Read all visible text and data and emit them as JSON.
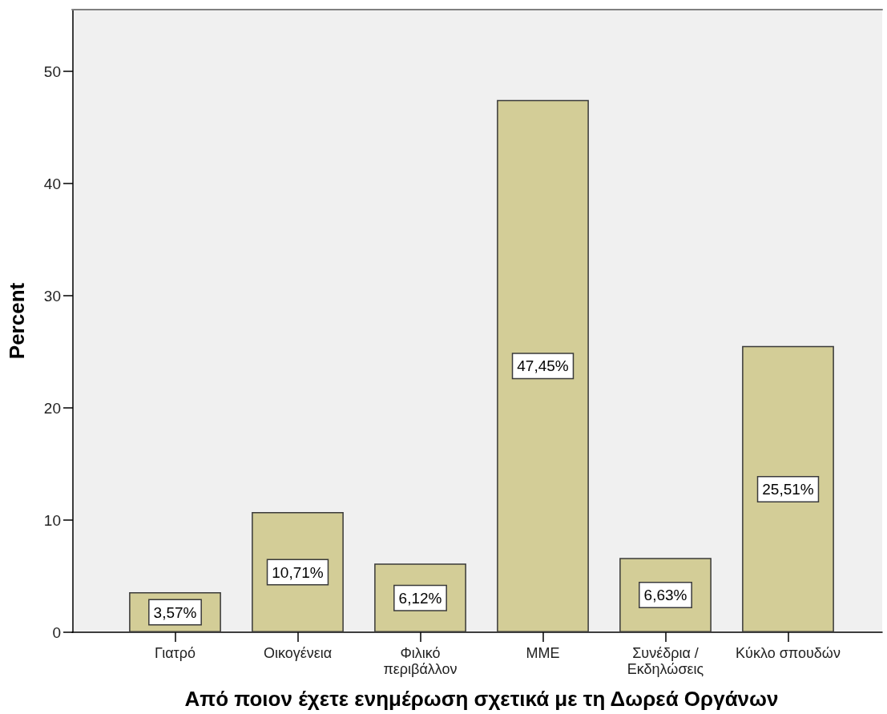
{
  "chart_data": {
    "type": "bar",
    "categories": [
      "Γιατρό",
      "Οικογένεια",
      "Φιλικό\nπεριβάλλον",
      "ΜΜΕ",
      "Συνέδρια /\nΕκδηλώσεις",
      "Κύκλο σπουδών"
    ],
    "values": [
      3.57,
      10.71,
      6.12,
      47.45,
      6.63,
      25.51
    ],
    "value_labels": [
      "3,57%",
      "10,71%",
      "6,12%",
      "47,45%",
      "6,63%",
      "25,51%"
    ],
    "color": "#d3cd97",
    "xlabel": "Από ποιον έχετε ενημέρωση σχετικά με τη Δωρεά Οργάνων",
    "ylabel": "Percent",
    "ylim": [
      0,
      55.5
    ],
    "yticks": [
      0,
      10,
      20,
      30,
      40,
      50
    ]
  }
}
